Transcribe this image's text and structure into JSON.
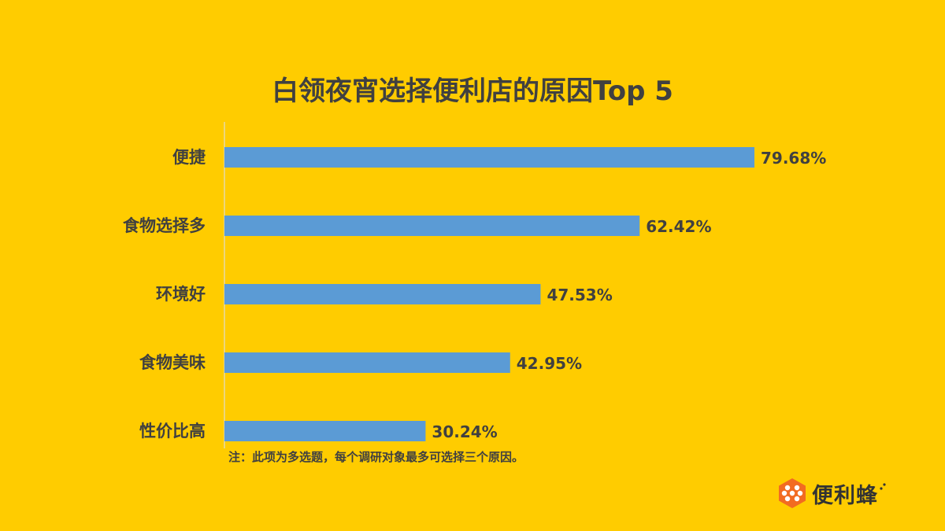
{
  "chart_data": {
    "type": "bar",
    "orientation": "horizontal",
    "title": "白领夜宵选择便利店的原因Top 5",
    "categories": [
      "便捷",
      "食物选择多",
      "环境好",
      "食物美味",
      "性价比高"
    ],
    "values": [
      79.68,
      62.42,
      47.53,
      42.95,
      30.24
    ],
    "data_labels": [
      "79.68%",
      "62.42%",
      "47.53%",
      "42.95%",
      "30.24%"
    ],
    "value_unit": "%",
    "xlim": [
      0,
      80
    ],
    "grid": false,
    "bar_color": "#5B9BD5"
  },
  "note": "注：此项为多选题，每个调研对象最多可选择三个原因。",
  "brand": {
    "name": "便利蜂",
    "logo_icon": "bee-hexagon-logo",
    "logo_color": "#F26B21"
  },
  "colors": {
    "background": "#FFCC00",
    "text": "#404040",
    "axis": "#E6D9A8"
  }
}
